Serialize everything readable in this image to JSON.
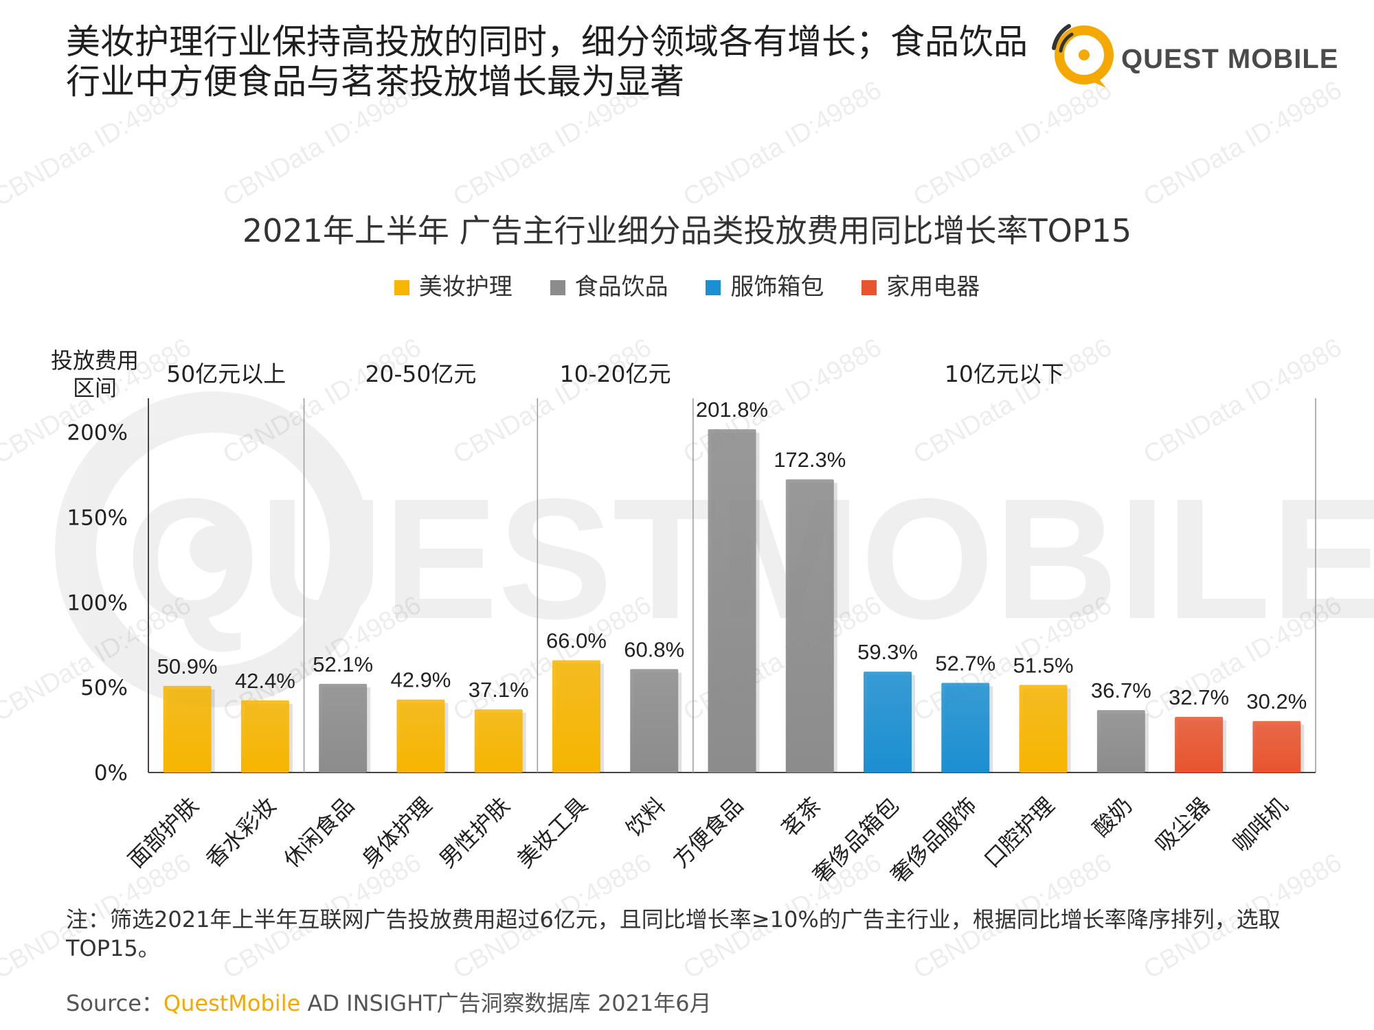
{
  "headline": "美妆护理行业保持高投放的同时，细分领域各有增长；食品饮品行业中方便食品与茗茶投放增长最为显著",
  "logo": {
    "text": "QUEST MOBILE",
    "watermark_text": "QUESTMOBILE",
    "brand_color": "#f5a800"
  },
  "watermark": {
    "tile": "CBNData ID:49886"
  },
  "chart_data": {
    "type": "bar",
    "title": "2021年上半年 广告主行业细分品类投放费用同比增长率TOP15",
    "legend": [
      {
        "name": "美妆护理",
        "color": "#f7b500"
      },
      {
        "name": "食品饮品",
        "color": "#8c8c8c"
      },
      {
        "name": "服饰箱包",
        "color": "#1b8fd1"
      },
      {
        "name": "家用电器",
        "color": "#e8542e"
      }
    ],
    "legend_position": "top",
    "ylabel": "投放费用区间",
    "ylabel_lines": [
      "投放费用",
      "区间"
    ],
    "ylim": [
      0,
      220
    ],
    "yticks": [
      0,
      50,
      100,
      150,
      200
    ],
    "ytick_labels": [
      "0%",
      "50%",
      "100%",
      "150%",
      "200%"
    ],
    "groups": [
      {
        "label": "50亿元以上",
        "start": 0,
        "count": 2
      },
      {
        "label": "20-50亿元",
        "start": 2,
        "count": 3
      },
      {
        "label": "10-20亿元",
        "start": 5,
        "count": 2
      },
      {
        "label": "10亿元以下",
        "start": 7,
        "count": 8
      }
    ],
    "categories": [
      "面部护肤",
      "香水彩妆",
      "休闲食品",
      "身体护理",
      "男性护肤",
      "美妆工具",
      "饮料",
      "方便食品",
      "茗茶",
      "奢侈品箱包",
      "奢侈品服饰",
      "口腔护理",
      "酸奶",
      "吸尘器",
      "咖啡机"
    ],
    "values": [
      50.9,
      42.4,
      52.1,
      42.9,
      37.1,
      66.0,
      60.8,
      201.8,
      172.3,
      59.3,
      52.7,
      51.5,
      36.7,
      32.7,
      30.2
    ],
    "value_labels": [
      "50.9%",
      "42.4%",
      "52.1%",
      "42.9%",
      "37.1%",
      "66.0%",
      "60.8%",
      "201.8%",
      "172.3%",
      "59.3%",
      "52.7%",
      "51.5%",
      "36.7%",
      "32.7%",
      "30.2%"
    ],
    "industries": [
      "美妆护理",
      "美妆护理",
      "食品饮品",
      "美妆护理",
      "美妆护理",
      "美妆护理",
      "食品饮品",
      "食品饮品",
      "食品饮品",
      "服饰箱包",
      "服饰箱包",
      "美妆护理",
      "食品饮品",
      "家用电器",
      "家用电器"
    ],
    "grid": false
  },
  "note": "注：筛选2021年上半年互联网广告投放费用超过6亿元，且同比增长率≥10%的广告主行业，根据同比增长率降序排列，选取TOP15。",
  "source": {
    "prefix": "Source：",
    "brand": "QuestMobile",
    "rest": " AD INSIGHT广告洞察数据库 2021年6月"
  }
}
